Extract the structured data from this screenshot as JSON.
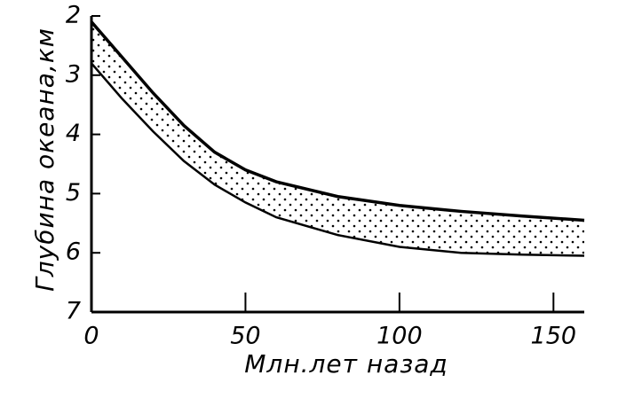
{
  "chart_data": {
    "type": "range-area",
    "xlabel": "Млн.лет назад",
    "ylabel": "Глубина океана,км",
    "x": [
      0,
      10,
      20,
      30,
      40,
      50,
      60,
      80,
      100,
      120,
      140,
      160
    ],
    "series": [
      {
        "color": "#000000",
        "values": [
          2.1,
          2.7,
          3.3,
          3.85,
          4.3,
          4.6,
          4.8,
          5.05,
          5.2,
          5.3,
          5.38,
          5.45
        ]
      },
      {
        "color": "#000000",
        "values": [
          2.8,
          3.4,
          3.95,
          4.45,
          4.85,
          5.15,
          5.4,
          5.7,
          5.9,
          6.0,
          6.03,
          6.05
        ]
      }
    ],
    "xlim": [
      0,
      160
    ],
    "xticks": [
      0,
      50,
      100,
      150
    ],
    "ylim": [
      7,
      2
    ],
    "yticks": [
      2,
      3,
      4,
      5,
      6,
      7
    ]
  }
}
